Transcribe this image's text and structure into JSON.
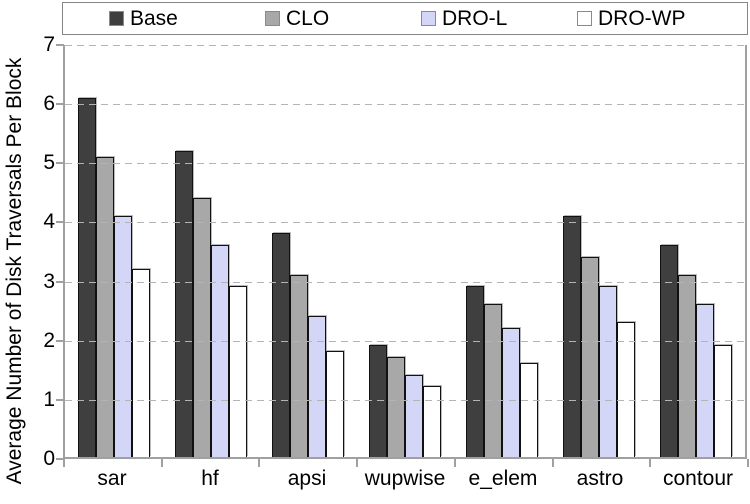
{
  "chart_data": {
    "type": "bar",
    "title": "",
    "xlabel": "",
    "ylabel": "Average Number of Disk Traversals Per Block",
    "ylim": [
      0,
      7
    ],
    "yticks": [
      0,
      1,
      2,
      3,
      4,
      5,
      6,
      7
    ],
    "grid": "horizontal-dashed",
    "legend_position": "top",
    "categories": [
      "sar",
      "hf",
      "apsi",
      "wupwise",
      "e_elem",
      "astro",
      "contour"
    ],
    "series": [
      {
        "name": "Base",
        "color": "#3f3f3f",
        "values": [
          6.1,
          5.2,
          3.8,
          1.9,
          2.9,
          4.1,
          3.6
        ]
      },
      {
        "name": "CLO",
        "color": "#a8a8a8",
        "values": [
          5.1,
          4.4,
          3.1,
          1.7,
          2.6,
          3.4,
          3.1
        ]
      },
      {
        "name": "DRO-L",
        "color": "#d4d6f8",
        "values": [
          4.1,
          3.6,
          2.4,
          1.4,
          2.2,
          2.9,
          2.6
        ]
      },
      {
        "name": "DRO-WP",
        "color": "#ffffff",
        "values": [
          3.2,
          2.9,
          1.8,
          1.2,
          1.6,
          2.3,
          1.9
        ]
      }
    ]
  },
  "colors": {
    "axis": "#a0a0a0",
    "gridline": "#b4b4b4",
    "bar_border": "#111111",
    "legend_border": "#858585",
    "text": "#000000",
    "background": "#ffffff"
  }
}
